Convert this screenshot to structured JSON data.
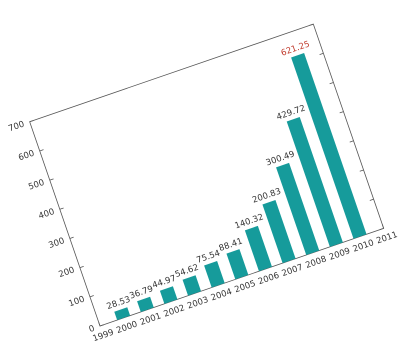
{
  "chart_data": {
    "type": "bar",
    "x": [
      2000,
      2001,
      2002,
      2003,
      2004,
      2005,
      2006,
      2007,
      2008,
      2009,
      2010
    ],
    "values": [
      28.53,
      36.79,
      44.97,
      54.62,
      75.54,
      88.41,
      140.32,
      200.83,
      300.49,
      429.72,
      621.25
    ],
    "value_label_colors": [
      "#333333",
      "#333333",
      "#333333",
      "#333333",
      "#333333",
      "#333333",
      "#333333",
      "#333333",
      "#333333",
      "#333333",
      "#c0392b"
    ],
    "color": "#169b9b",
    "xlim": [
      1999,
      2011
    ],
    "xticks": [
      1999,
      2000,
      2001,
      2002,
      2003,
      2004,
      2005,
      2006,
      2007,
      2008,
      2009,
      2010,
      2011
    ],
    "ylim": [
      0,
      700
    ],
    "yticks": [
      0,
      100,
      200,
      300,
      400,
      500,
      600,
      700
    ]
  }
}
